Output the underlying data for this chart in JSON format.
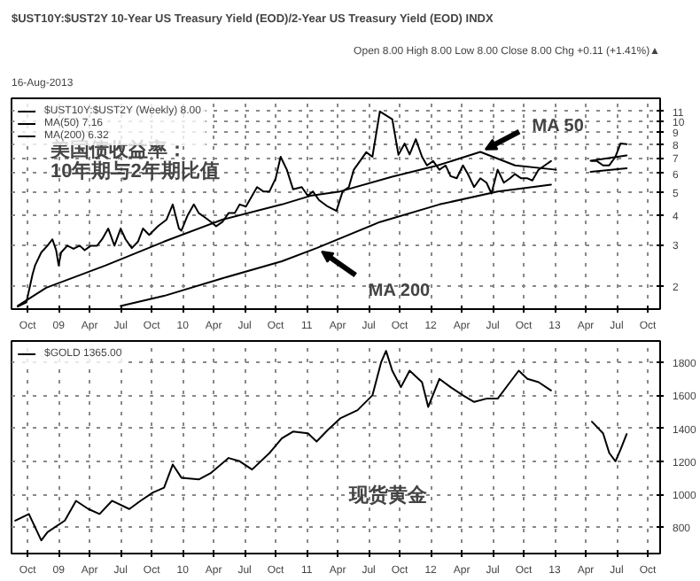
{
  "chart_data": [
    {
      "type": "line",
      "title": "$UST10Y:$UST2Y 10-Year US Treasury Yield (EOD)/2-Year US Treasury Yield (EOD) INDX",
      "subtitle": "16-Aug-2013",
      "annotations": [
        "Open 8.00 High 8.00 Low 8.00 Close 8.00 Chg +0.11 (+1.41%)▲",
        "美国债收益率：",
        "10年期与2年期比值",
        {
          "text": "MA 50",
          "x": 2012.4,
          "y": 7.41
        },
        {
          "text": "MA 200",
          "x": 2011.08,
          "y": 2.9
        }
      ],
      "log": true,
      "grid": true,
      "legend": "top left",
      "xlim": [
        2008.62,
        2013.85
      ],
      "ylim": [
        1.6,
        12.5
      ],
      "yticks": [
        2,
        3,
        4,
        5,
        6,
        7,
        8,
        9,
        10,
        11
      ],
      "xticks": [
        {
          "value": 2008.75,
          "label": "Oct"
        },
        {
          "value": 2009,
          "label": "09"
        },
        {
          "value": 2009.25,
          "label": "Apr"
        },
        {
          "value": 2009.5,
          "label": "Jul"
        },
        {
          "value": 2009.75,
          "label": "Oct"
        },
        {
          "value": 2010,
          "label": "10"
        },
        {
          "value": 2010.25,
          "label": "Apr"
        },
        {
          "value": 2010.5,
          "label": "Jul"
        },
        {
          "value": 2010.75,
          "label": "Oct"
        },
        {
          "value": 2011,
          "label": "11"
        },
        {
          "value": 2011.25,
          "label": "Apr"
        },
        {
          "value": 2011.5,
          "label": "Jul"
        },
        {
          "value": 2011.75,
          "label": "Oct"
        },
        {
          "value": 2012,
          "label": "12"
        },
        {
          "value": 2012.25,
          "label": "Apr"
        },
        {
          "value": 2012.5,
          "label": "Jul"
        },
        {
          "value": 2012.75,
          "label": "Oct"
        },
        {
          "value": 2013,
          "label": "13"
        },
        {
          "value": 2013.25,
          "label": "Apr"
        },
        {
          "value": 2013.5,
          "label": "Jul"
        },
        {
          "value": 2013.75,
          "label": "Oct"
        }
      ],
      "series": [
        {
          "name": "$UST10Y:$UST2Y (Weekly) 8.00",
          "color": "#000000",
          "x": [
            2008.67,
            2008.74,
            2008.79,
            2008.81,
            2008.86,
            2008.91,
            2008.95,
            2008.98,
            2009.0,
            2009.02,
            2009.07,
            2009.12,
            2009.17,
            2009.21,
            2009.26,
            2009.31,
            2009.35,
            2009.4,
            2009.45,
            2009.5,
            2009.54,
            2009.59,
            2009.64,
            2009.68,
            2009.73,
            2009.8,
            2009.87,
            2009.92,
            2009.97,
            2009.99,
            2010.04,
            2010.09,
            2010.13,
            2010.18,
            2010.23,
            2010.27,
            2010.32,
            2010.37,
            2010.42,
            2010.46,
            2010.51,
            2010.56,
            2010.6,
            2010.65,
            2010.7,
            2010.75,
            2010.79,
            2010.84,
            2010.89,
            2010.96,
            2011.01,
            2011.05,
            2011.1,
            2011.17,
            2011.24,
            2011.29,
            2011.34,
            2011.38,
            2011.43,
            2011.48,
            2011.53,
            2011.59,
            2011.69,
            2011.74,
            2011.79,
            2011.83,
            2011.88,
            2011.93,
            2011.97,
            2012.02,
            2012.07,
            2012.12,
            2012.16,
            2012.21,
            2012.26,
            2012.3,
            2012.35,
            2012.4,
            2012.45,
            2012.49,
            2012.54,
            2012.59,
            2012.64,
            2012.68,
            2012.73,
            2012.78,
            2012.82,
            2012.87,
            2012.92,
            2012.97,
            2013.12,
            2013.3,
            2013.34,
            2013.39,
            2013.44,
            2013.49,
            2013.53,
            2013.58
          ],
          "values": [
            1.64,
            1.71,
            2.25,
            2.45,
            2.78,
            2.97,
            3.16,
            2.84,
            2.45,
            2.78,
            2.97,
            2.88,
            2.97,
            2.84,
            2.97,
            2.97,
            3.16,
            3.51,
            2.97,
            3.51,
            3.16,
            2.9,
            3.09,
            3.51,
            3.3,
            3.59,
            3.83,
            4.44,
            3.51,
            3.44,
            3.99,
            4.44,
            4.08,
            3.91,
            3.74,
            3.59,
            3.74,
            4.08,
            4.08,
            4.44,
            4.35,
            4.83,
            5.26,
            5.04,
            5.04,
            5.73,
            7.07,
            6.23,
            5.15,
            5.26,
            4.83,
            5.04,
            4.63,
            4.35,
            4.17,
            5.04,
            5.26,
            6.23,
            6.78,
            7.39,
            7.07,
            11.0,
            10.2,
            7.2,
            8.04,
            7.23,
            8.39,
            7.07,
            6.5,
            6.78,
            6.23,
            6.5,
            5.85,
            5.73,
            6.5,
            5.97,
            5.26,
            5.73,
            5.49,
            4.94,
            6.23,
            5.49,
            5.73,
            5.97,
            5.73,
            5.73,
            5.61,
            6.23,
            6.5,
            6.78,
            null,
            6.78,
            6.78,
            6.5,
            6.5,
            7.07,
            8.04,
            8.0
          ]
        },
        {
          "name": "MA(50) 7.16",
          "color": "#000000",
          "x": [
            2008.67,
            2008.9,
            2009.38,
            2009.85,
            2010.32,
            2010.8,
            2011.03,
            2011.27,
            2011.69,
            2012.05,
            2012.4,
            2012.68,
            2013.01,
            2013.12,
            2013.29,
            2013.58
          ],
          "values": [
            1.65,
            1.97,
            2.45,
            3.09,
            3.83,
            4.44,
            4.83,
            5.04,
            5.82,
            6.48,
            7.41,
            6.5,
            6.23,
            null,
            6.8,
            7.16
          ]
        },
        {
          "name": "MA(200) 6.32",
          "color": "#000000",
          "x": [
            2009.5,
            2009.85,
            2010.32,
            2010.8,
            2011.08,
            2011.59,
            2012.07,
            2012.54,
            2012.97,
            2013.12,
            2013.29,
            2013.58
          ],
          "values": [
            1.65,
            1.82,
            2.16,
            2.55,
            2.9,
            3.74,
            4.44,
            5.04,
            5.38,
            null,
            6.1,
            6.32
          ]
        }
      ]
    },
    {
      "type": "line",
      "annotations": [
        "现货黄金"
      ],
      "grid": true,
      "legend": "top left",
      "xlim": [
        2008.62,
        2013.85
      ],
      "ylim": [
        640,
        1930
      ],
      "yticks": [
        800,
        1000,
        1200,
        1400,
        1600,
        1800
      ],
      "xticks": [
        {
          "value": 2008.75,
          "label": "Oct"
        },
        {
          "value": 2009,
          "label": "09"
        },
        {
          "value": 2009.25,
          "label": "Apr"
        },
        {
          "value": 2009.5,
          "label": "Jul"
        },
        {
          "value": 2009.75,
          "label": "Oct"
        },
        {
          "value": 2010,
          "label": "10"
        },
        {
          "value": 2010.25,
          "label": "Apr"
        },
        {
          "value": 2010.5,
          "label": "Jul"
        },
        {
          "value": 2010.75,
          "label": "Oct"
        },
        {
          "value": 2011,
          "label": "11"
        },
        {
          "value": 2011.25,
          "label": "Apr"
        },
        {
          "value": 2011.5,
          "label": "Jul"
        },
        {
          "value": 2011.75,
          "label": "Oct"
        },
        {
          "value": 2012,
          "label": "12"
        },
        {
          "value": 2012.25,
          "label": "Apr"
        },
        {
          "value": 2012.5,
          "label": "Jul"
        },
        {
          "value": 2012.75,
          "label": "Oct"
        },
        {
          "value": 2013,
          "label": "13"
        },
        {
          "value": 2013.25,
          "label": "Apr"
        },
        {
          "value": 2013.5,
          "label": "Jul"
        },
        {
          "value": 2013.75,
          "label": "Oct"
        }
      ],
      "series": [
        {
          "name": "$GOLD 1365.00",
          "color": "#000000",
          "x": [
            2008.65,
            2008.76,
            2008.86,
            2008.91,
            2009.05,
            2009.14,
            2009.24,
            2009.33,
            2009.43,
            2009.57,
            2009.66,
            2009.76,
            2009.85,
            2009.92,
            2009.99,
            2010.13,
            2010.23,
            2010.37,
            2010.46,
            2010.56,
            2010.7,
            2010.8,
            2010.89,
            2011.01,
            2011.08,
            2011.17,
            2011.27,
            2011.41,
            2011.53,
            2011.6,
            2011.64,
            2011.69,
            2011.76,
            2011.83,
            2011.93,
            2011.98,
            2012.07,
            2012.16,
            2012.26,
            2012.35,
            2012.45,
            2012.54,
            2012.64,
            2012.71,
            2012.78,
            2012.87,
            2012.97,
            2013.1,
            2013.3,
            2013.39,
            2013.44,
            2013.49,
            2013.53,
            2013.58
          ],
          "values": [
            840,
            880,
            720,
            770,
            840,
            960,
            910,
            880,
            960,
            910,
            960,
            1010,
            1040,
            1180,
            1100,
            1090,
            1130,
            1220,
            1200,
            1150,
            1250,
            1340,
            1380,
            1370,
            1320,
            1390,
            1460,
            1510,
            1600,
            1800,
            1870,
            1750,
            1650,
            1750,
            1680,
            1530,
            1700,
            1650,
            1600,
            1560,
            1580,
            1580,
            1680,
            1750,
            1700,
            1680,
            1630,
            null,
            1440,
            1370,
            1250,
            1200,
            1270,
            1365
          ]
        }
      ]
    }
  ]
}
